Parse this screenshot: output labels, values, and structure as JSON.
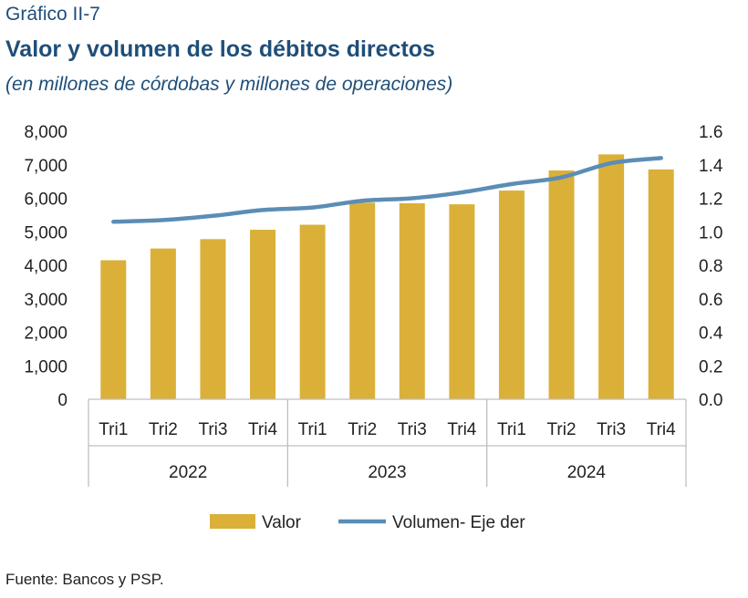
{
  "header": {
    "kicker": "Gráfico II-7",
    "title": "Valor y volumen de los débitos directos",
    "subtitle": "(en millones de córdobas y millones de operaciones)"
  },
  "footer": {
    "source": "Fuente: Bancos y PSP."
  },
  "colors": {
    "bar": "#DAB038",
    "line": "#5B8DB5",
    "axis": "#BFBFBF",
    "text": "#222222"
  },
  "chart_data": {
    "type": "bar",
    "categories": [
      "Tri1",
      "Tri2",
      "Tri3",
      "Tri4",
      "Tri1",
      "Tri2",
      "Tri3",
      "Tri4",
      "Tri1",
      "Tri2",
      "Tri3",
      "Tri4"
    ],
    "groups": [
      {
        "label": "2022",
        "start": 0,
        "count": 4
      },
      {
        "label": "2023",
        "start": 4,
        "count": 4
      },
      {
        "label": "2024",
        "start": 8,
        "count": 4
      }
    ],
    "series": [
      {
        "name": "Valor",
        "type": "bar",
        "axis": "left",
        "values": [
          4150,
          4500,
          4780,
          5060,
          5210,
          5870,
          5850,
          5820,
          6230,
          6830,
          7310,
          6860
        ]
      },
      {
        "name": "Volumen- Eje der",
        "type": "line",
        "axis": "right",
        "values": [
          1.06,
          1.07,
          1.095,
          1.13,
          1.145,
          1.185,
          1.2,
          1.235,
          1.285,
          1.325,
          1.41,
          1.44
        ]
      }
    ],
    "yLeft": {
      "min": 0,
      "max": 8000,
      "step": 1000,
      "ticks": [
        "0",
        "1,000",
        "2,000",
        "3,000",
        "4,000",
        "5,000",
        "6,000",
        "7,000",
        "8,000"
      ]
    },
    "yRight": {
      "min": 0,
      "max": 1.6,
      "step": 0.2,
      "ticks": [
        "0.0",
        "0.2",
        "0.4",
        "0.6",
        "0.8",
        "1.0",
        "1.2",
        "1.4",
        "1.6"
      ]
    },
    "legend": {
      "position": "bottom"
    },
    "grid": false
  }
}
